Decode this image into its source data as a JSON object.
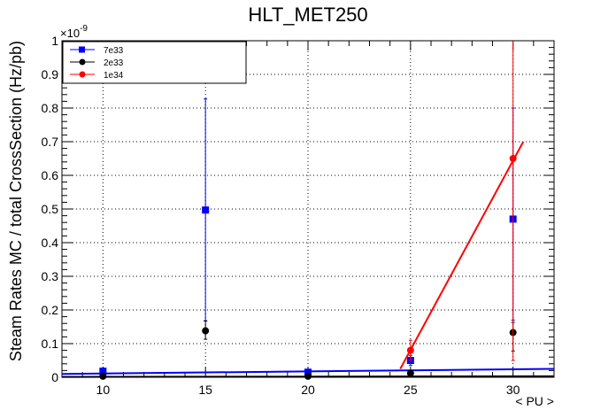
{
  "chart_data": {
    "type": "scatter",
    "title": "HLT_MET250",
    "xlabel": "< PU >",
    "ylabel": "Steam Rates MC / total CrossSection (Hz/pb)",
    "y_exponent_label": "×10",
    "y_exponent": "-9",
    "xlim": [
      8,
      32
    ],
    "ylim": [
      0,
      1
    ],
    "x_major_ticks": [
      10,
      15,
      20,
      25,
      30
    ],
    "y_major_ticks": [
      0,
      0.1,
      0.2,
      0.3,
      0.4,
      0.5,
      0.6,
      0.7,
      0.8,
      0.9,
      1
    ],
    "x_tick_labels": [
      "10",
      "15",
      "20",
      "25",
      "30"
    ],
    "y_tick_labels": [
      "0",
      "0.1",
      "0.2",
      "0.3",
      "0.4",
      "0.5",
      "0.6",
      "0.7",
      "0.8",
      "0.9",
      "1"
    ],
    "grid": true,
    "legend_position": "top-left",
    "series": [
      {
        "name": "7e33",
        "color": "#0000ff",
        "marker": "square",
        "x": [
          10,
          15,
          20,
          25,
          30
        ],
        "y": [
          0.018,
          0.497,
          0.015,
          0.05,
          0.47
        ],
        "yerr_low": [
          0.004,
          0.33,
          0.004,
          0.015,
          0.3
        ],
        "yerr_high": [
          0.004,
          0.33,
          0.004,
          0.015,
          0.33
        ],
        "fit": {
          "x": [
            8,
            32
          ],
          "y": [
            0.01,
            0.025
          ]
        }
      },
      {
        "name": "2e33",
        "color": "#000000",
        "marker": "circle",
        "x": [
          10,
          15,
          20,
          25,
          30
        ],
        "y": [
          0.003,
          0.138,
          0.003,
          0.012,
          0.133
        ],
        "yerr_low": [
          0.002,
          0.025,
          0.002,
          0.005,
          0.055
        ],
        "yerr_high": [
          0.002,
          0.03,
          0.002,
          0.008,
          0.03
        ],
        "fit": {
          "x": [
            8,
            32
          ],
          "y": [
            0.001,
            0.003
          ]
        }
      },
      {
        "name": "1e34",
        "color": "#ff0000",
        "marker": "circle",
        "x": [
          25,
          30
        ],
        "y": [
          0.08,
          0.65
        ],
        "yerr_low": [
          0.03,
          0.6
        ],
        "yerr_high": [
          0.03,
          0.35
        ],
        "fit": {
          "x": [
            24.5,
            30.5
          ],
          "y": [
            0.025,
            0.7
          ]
        }
      }
    ]
  }
}
